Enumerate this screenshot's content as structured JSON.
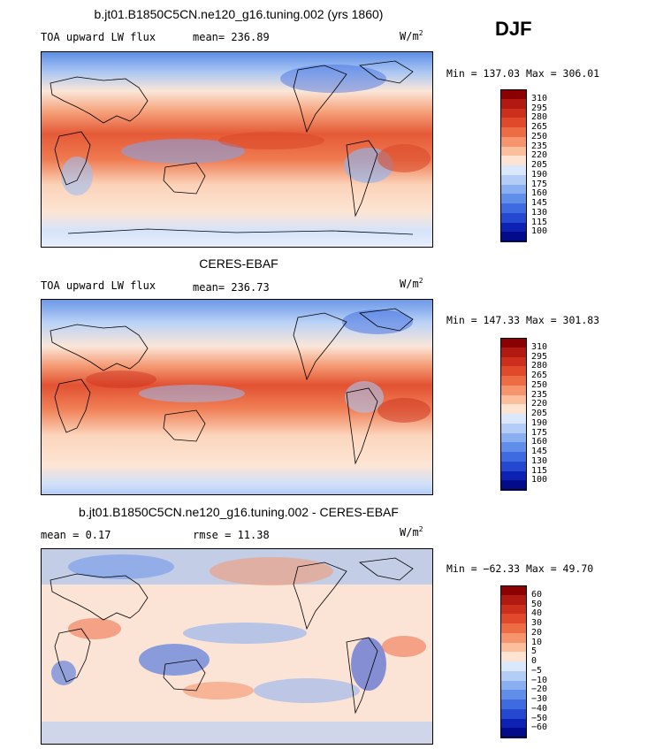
{
  "season": "DJF",
  "chart_data": [
    {
      "type": "heatmap",
      "title": "b.jt01.B1850C5CN.ne120_g16.tuning.002 (yrs 1860)",
      "left_label": "TOA upward LW flux",
      "center_label": "mean= 236.89",
      "units": "W/m",
      "units_exp": "2",
      "minmax": "Min = 137.03 Max = 306.01",
      "levels": [
        "310",
        "295",
        "280",
        "265",
        "250",
        "235",
        "220",
        "205",
        "190",
        "175",
        "160",
        "145",
        "130",
        "115",
        "100"
      ],
      "colors": [
        "#8b0000",
        "#b11a10",
        "#cc2f1c",
        "#e04a2a",
        "#ee6c44",
        "#f6956d",
        "#fbbf9d",
        "#fde3d2",
        "#dbe7fb",
        "#b3cdf6",
        "#8aaff0",
        "#618ee8",
        "#3e6be0",
        "#2448cf",
        "#0d22b3",
        "#020c8a"
      ]
    },
    {
      "type": "heatmap",
      "title": "CERES-EBAF",
      "left_label": "TOA upward LW flux",
      "center_label": "mean= 236.73",
      "units": "W/m",
      "units_exp": "2",
      "minmax": "Min = 147.33 Max = 301.83",
      "levels": [
        "310",
        "295",
        "280",
        "265",
        "250",
        "235",
        "220",
        "205",
        "190",
        "175",
        "160",
        "145",
        "130",
        "115",
        "100"
      ],
      "colors": [
        "#8b0000",
        "#b11a10",
        "#cc2f1c",
        "#e04a2a",
        "#ee6c44",
        "#f6956d",
        "#fbbf9d",
        "#fde3d2",
        "#dbe7fb",
        "#b3cdf6",
        "#8aaff0",
        "#618ee8",
        "#3e6be0",
        "#2448cf",
        "#0d22b3",
        "#020c8a"
      ]
    },
    {
      "type": "heatmap",
      "title": "b.jt01.B1850C5CN.ne120_g16.tuning.002 - CERES-EBAF",
      "left_label": "mean =   0.17",
      "center_label": "rmse =  11.38",
      "units": "W/m",
      "units_exp": "2",
      "minmax": "Min = −62.33 Max =  49.70",
      "levels": [
        "60",
        "50",
        "40",
        "30",
        "20",
        "10",
        "5",
        "0",
        "−5",
        "−10",
        "−20",
        "−30",
        "−40",
        "−50",
        "−60"
      ],
      "colors": [
        "#8b0000",
        "#b11a10",
        "#cc2f1c",
        "#e04a2a",
        "#ee6c44",
        "#f6956d",
        "#fbbf9d",
        "#fde3d2",
        "#dbe7fb",
        "#b3cdf6",
        "#8aaff0",
        "#618ee8",
        "#3e6be0",
        "#2448cf",
        "#0d22b3",
        "#020c8a"
      ]
    }
  ]
}
